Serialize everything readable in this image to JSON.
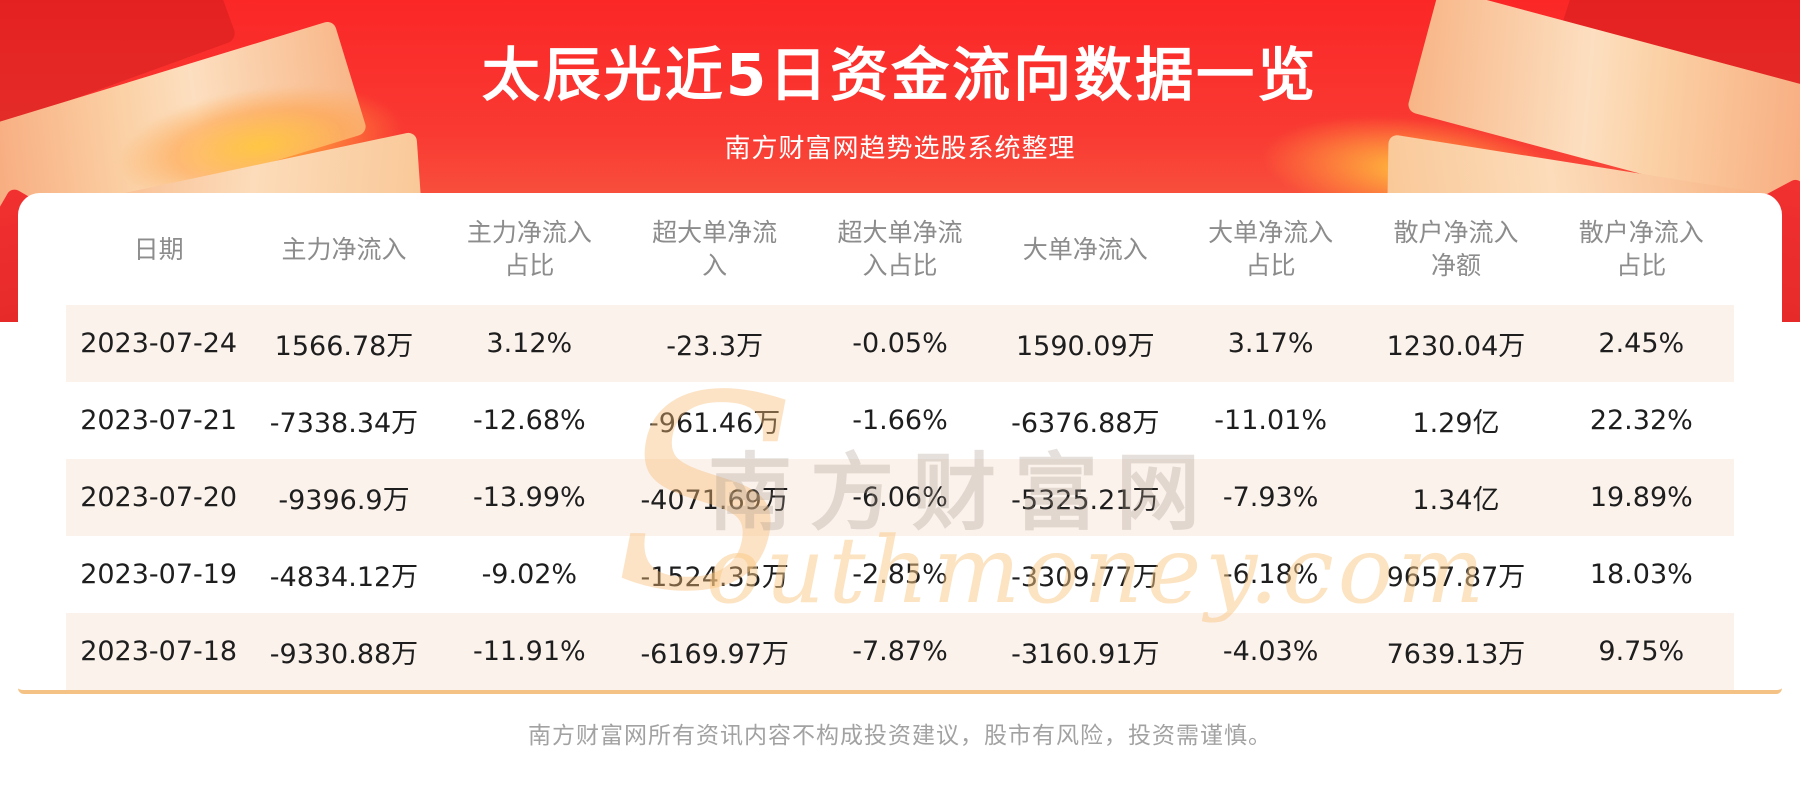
{
  "header": {
    "title": "太辰光近5日资金流向数据一览",
    "subtitle": "南方财富网趋势选股系统整理"
  },
  "chart_data": {
    "type": "table",
    "title": "太辰光近5日资金流向数据一览",
    "subtitle": "南方财富网趋势选股系统整理",
    "columns": [
      "日期",
      "主力净流入",
      "主力净流入占比",
      "超大单净流入",
      "超大单净流入占比",
      "大单净流入",
      "大单净流入占比",
      "散户净流入净额",
      "散户净流入占比"
    ],
    "rows": [
      [
        "2023-07-24",
        "1566.78万",
        "3.12%",
        "-23.3万",
        "-0.05%",
        "1590.09万",
        "3.17%",
        "1230.04万",
        "2.45%"
      ],
      [
        "2023-07-21",
        "-7338.34万",
        "-12.68%",
        "-961.46万",
        "-1.66%",
        "-6376.88万",
        "-11.01%",
        "1.29亿",
        "22.32%"
      ],
      [
        "2023-07-20",
        "-9396.9万",
        "-13.99%",
        "-4071.69万",
        "-6.06%",
        "-5325.21万",
        "-7.93%",
        "1.34亿",
        "19.89%"
      ],
      [
        "2023-07-19",
        "-4834.12万",
        "-9.02%",
        "-1524.35万",
        "-2.85%",
        "-3309.77万",
        "-6.18%",
        "9657.87万",
        "18.03%"
      ],
      [
        "2023-07-18",
        "-9330.88万",
        "-11.91%",
        "-6169.97万",
        "-7.87%",
        "-3160.91万",
        "-4.03%",
        "7639.13万",
        "9.75%"
      ]
    ]
  },
  "table": {
    "header_lines": [
      [
        "日期",
        ""
      ],
      [
        "主力净流入",
        ""
      ],
      [
        "主力净流入",
        "占比"
      ],
      [
        "超大单净流",
        "入"
      ],
      [
        "超大单净流",
        "入占比"
      ],
      [
        "大单净流入",
        ""
      ],
      [
        "大单净流入",
        "占比"
      ],
      [
        "散户净流入",
        "净额"
      ],
      [
        "散户净流入",
        "占比"
      ]
    ]
  },
  "watermark": {
    "initial": "S",
    "script": "outhmoney.com",
    "brand": "南方财富网"
  },
  "footer": {
    "disclaimer": "南方财富网所有资讯内容不构成投资建议，股市有风险，投资需谨慎。"
  },
  "colors": {
    "banner_red_top": "#fb2727",
    "banner_red_bottom": "#f87f56",
    "stripe_row": "#fbf2ec",
    "divider_line": "#f5c286",
    "title_text": "#ffffff",
    "column_header_text": "#8c8c8c",
    "cell_text": "#1e1e1e",
    "footer_text": "#a2a2a2",
    "decoration_peach": "#fbd0a4",
    "watermark_orange": "#f8bc74"
  }
}
